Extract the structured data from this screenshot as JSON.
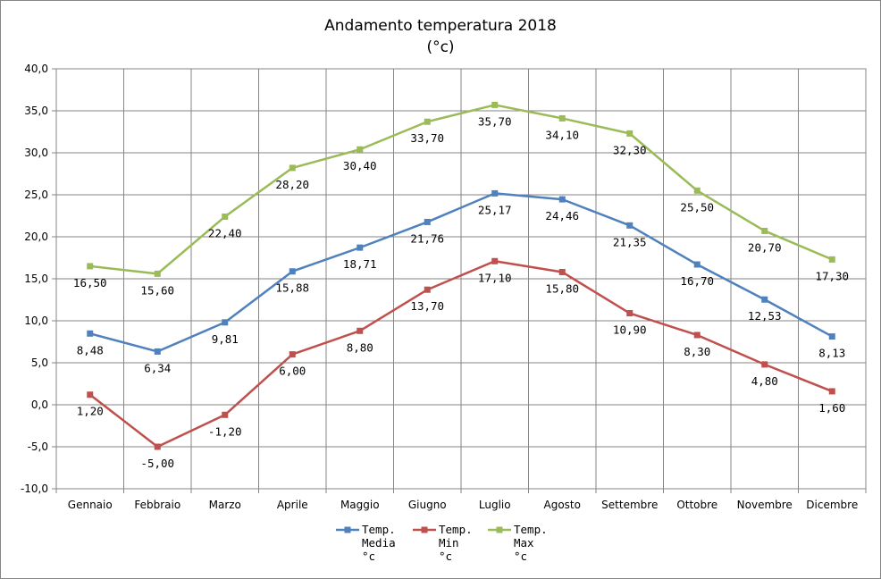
{
  "chart_data": {
    "type": "line",
    "title": "Andamento temperatura 2018",
    "subtitle": "(°c)",
    "categories": [
      "Gennaio",
      "Febbraio",
      "Marzo",
      "Aprile",
      "Maggio",
      "Giugno",
      "Luglio",
      "Agosto",
      "Settembre",
      "Ottobre",
      "Novembre",
      "Dicembre"
    ],
    "ylim": [
      -10,
      40
    ],
    "y_ticks": [
      -10,
      -5,
      0,
      5,
      10,
      15,
      20,
      25,
      30,
      35,
      40
    ],
    "y_tick_labels": [
      "-10,0",
      "-5,0",
      "0,0",
      "5,0",
      "10,0",
      "15,0",
      "20,0",
      "25,0",
      "30,0",
      "35,0",
      "40,0"
    ],
    "grid": true,
    "legend_position": "bottom",
    "series": [
      {
        "name": "Temp. Media °c",
        "legend_lines": [
          "Temp.",
          "Media",
          "°c"
        ],
        "color": "#4f81bd",
        "values": [
          8.48,
          6.34,
          9.81,
          15.88,
          18.71,
          21.76,
          25.17,
          24.46,
          21.35,
          16.7,
          12.53,
          8.13
        ],
        "labels": [
          "8,48",
          "6,34",
          "9,81",
          "15,88",
          "18,71",
          "21,76",
          "25,17",
          "24,46",
          "21,35",
          "16,70",
          "12,53",
          "8,13"
        ]
      },
      {
        "name": "Temp. Min °c",
        "legend_lines": [
          "Temp.",
          "Min",
          "°c"
        ],
        "color": "#c0504d",
        "values": [
          1.2,
          -5.0,
          -1.2,
          6.0,
          8.8,
          13.7,
          17.1,
          15.8,
          10.9,
          8.3,
          4.8,
          1.6
        ],
        "labels": [
          "1,20",
          "-5,00",
          "-1,20",
          "6,00",
          "8,80",
          "13,70",
          "17,10",
          "15,80",
          "10,90",
          "8,30",
          "4,80",
          "1,60"
        ]
      },
      {
        "name": "Temp. Max °c",
        "legend_lines": [
          "Temp.",
          "Max",
          "°c"
        ],
        "color": "#9bbb59",
        "values": [
          16.5,
          15.6,
          22.4,
          28.2,
          30.4,
          33.7,
          35.7,
          34.1,
          32.3,
          25.5,
          20.7,
          17.3
        ],
        "labels": [
          "16,50",
          "15,60",
          "22,40",
          "28,20",
          "30,40",
          "33,70",
          "35,70",
          "34,10",
          "32,30",
          "25,50",
          "20,70",
          "17,30"
        ]
      }
    ]
  }
}
